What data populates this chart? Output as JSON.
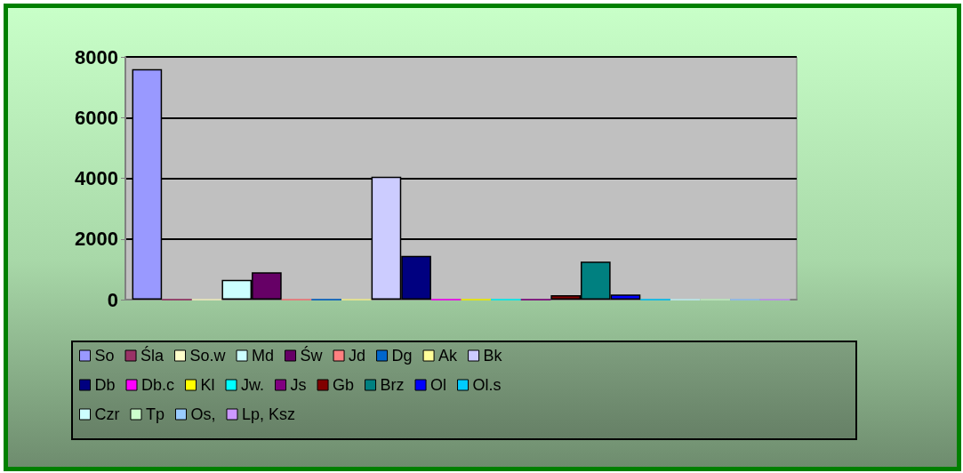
{
  "chart_data": {
    "type": "bar",
    "categories": [
      null
    ],
    "series": [
      {
        "name": "So",
        "color": "#9999ff",
        "values": [
          7600
        ]
      },
      {
        "name": "Śla",
        "color": "#993366",
        "values": [
          0
        ]
      },
      {
        "name": "So.w",
        "color": "#ffffcc",
        "values": [
          0
        ]
      },
      {
        "name": "Md",
        "color": "#ccffff",
        "values": [
          650
        ]
      },
      {
        "name": "Św",
        "color": "#660066",
        "values": [
          900
        ]
      },
      {
        "name": "Jd",
        "color": "#ff8080",
        "values": [
          0
        ]
      },
      {
        "name": "Dg",
        "color": "#0066cc",
        "values": [
          0
        ]
      },
      {
        "name": "Ak",
        "color": "#ffff99",
        "values": [
          0
        ]
      },
      {
        "name": "Bk",
        "color": "#ccccff",
        "values": [
          4050
        ]
      },
      {
        "name": "Db",
        "color": "#000080",
        "values": [
          1440
        ]
      },
      {
        "name": "Db.c",
        "color": "#ff00ff",
        "values": [
          0
        ]
      },
      {
        "name": "Kl",
        "color": "#ffff00",
        "values": [
          0
        ]
      },
      {
        "name": "Jw.",
        "color": "#00ffff",
        "values": [
          0
        ]
      },
      {
        "name": "Js",
        "color": "#800080",
        "values": [
          0
        ]
      },
      {
        "name": "Gb",
        "color": "#800000",
        "values": [
          150
        ]
      },
      {
        "name": "Brz",
        "color": "#008080",
        "values": [
          1250
        ]
      },
      {
        "name": "Ol",
        "color": "#0000ff",
        "values": [
          170
        ]
      },
      {
        "name": "Ol.s",
        "color": "#00ccff",
        "values": [
          0
        ]
      },
      {
        "name": "Czr",
        "color": "#ccffff",
        "values": [
          0
        ]
      },
      {
        "name": "Tp",
        "color": "#ccffcc",
        "values": [
          0
        ]
      },
      {
        "name": "Os,",
        "color": "#99ccff",
        "values": [
          0
        ]
      },
      {
        "name": "Lp, Ksz",
        "color": "#cc99ff",
        "values": [
          0
        ]
      }
    ],
    "ylim": [
      0,
      8000
    ],
    "yticks": [
      0,
      2000,
      4000,
      6000,
      8000
    ],
    "grid": "y",
    "legend": "bottom"
  }
}
